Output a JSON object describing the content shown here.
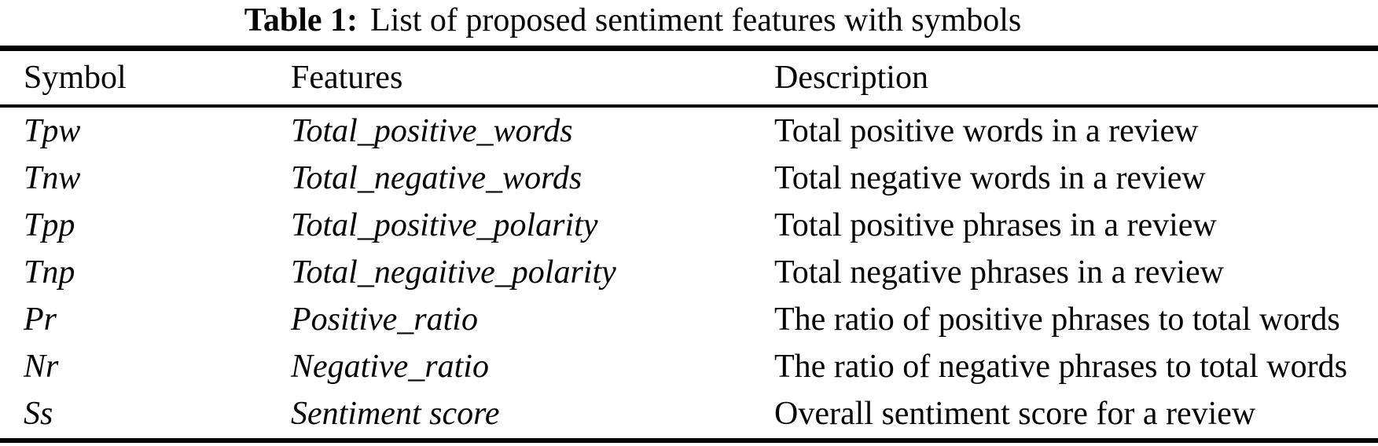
{
  "caption": {
    "label": "Table 1:",
    "text": "List of proposed sentiment features with symbols"
  },
  "table": {
    "columns": [
      "Symbol",
      "Features",
      "Description"
    ],
    "rows": [
      {
        "symbol": "Tpw",
        "feature": "Total_positive_words",
        "description": "Total positive words in a review"
      },
      {
        "symbol": "Tnw",
        "feature": "Total_negative_words",
        "description": "Total negative words in a review"
      },
      {
        "symbol": "Tpp",
        "feature": "Total_positive_polarity",
        "description": "Total positive phrases in a review"
      },
      {
        "symbol": "Tnp",
        "feature": "Total_negaitive_polarity",
        "description": "Total negative phrases in a review"
      },
      {
        "symbol": "Pr",
        "feature": "Positive_ratio",
        "description": "The ratio of positive phrases to total words"
      },
      {
        "symbol": "Nr",
        "feature": "Negative_ratio",
        "description": "The ratio of negative phrases to total words"
      },
      {
        "symbol": "Ss",
        "feature": "Sentiment score",
        "description": "Overall sentiment score for a review"
      }
    ]
  },
  "colors": {
    "text": "#050505",
    "background": "#ffffff",
    "rule": "#050505"
  }
}
